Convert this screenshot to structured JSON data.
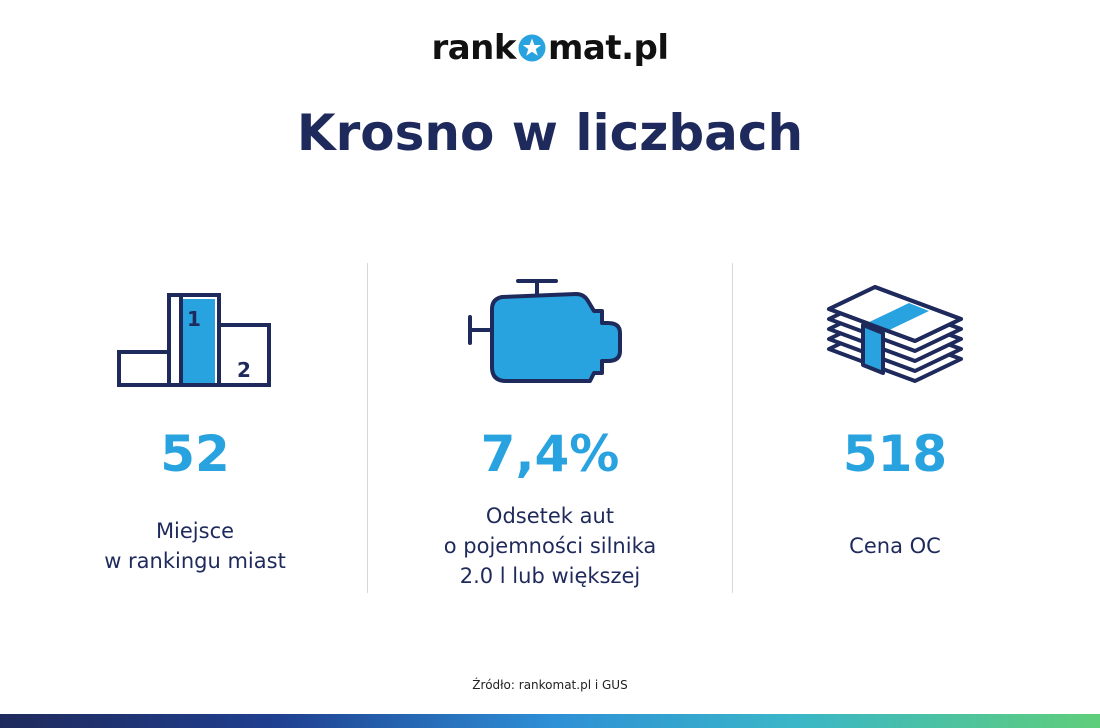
{
  "logo": {
    "before": "rank",
    "after": "mat.pl",
    "icon": "star-icon"
  },
  "title": "Krosno w liczbach",
  "stats": [
    {
      "icon": "podium-icon",
      "value": "52",
      "label": "Miejsce\nw rankingu miast"
    },
    {
      "icon": "engine-icon",
      "value": "7,4%",
      "label": "Odsetek aut\no pojemności silnika\n2.0 l lub większej"
    },
    {
      "icon": "money-stack-icon",
      "value": "518",
      "label": "Cena OC"
    }
  ],
  "podium": {
    "first": "1",
    "second": "2"
  },
  "source": "Źródło: rankomat.pl i GUS",
  "colors": {
    "navy": "#1f2a5c",
    "accent": "#29a3df"
  }
}
